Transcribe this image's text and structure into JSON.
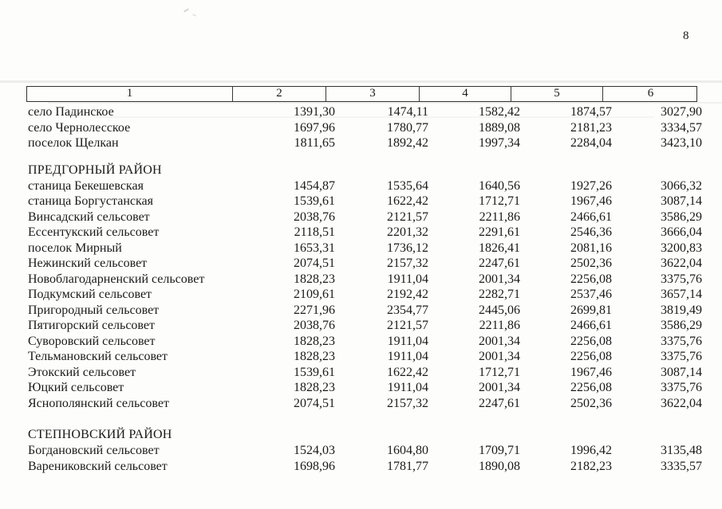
{
  "page": {
    "number": "8"
  },
  "colors": {
    "ink": "#1a1a1a",
    "paper": "#fdfdfc",
    "table_border": "#333231"
  },
  "table": {
    "header_columns": [
      "1",
      "2",
      "3",
      "4",
      "5",
      "6"
    ],
    "sections": [
      {
        "heading": null,
        "rows": [
          {
            "name": "село Падинское",
            "values": [
              "1391,30",
              "1474,11",
              "1582,42",
              "1874,57",
              "3027,90"
            ]
          },
          {
            "name": "село Чернолесское",
            "values": [
              "1697,96",
              "1780,77",
              "1889,08",
              "2181,23",
              "3334,57"
            ]
          },
          {
            "name": "поселок Щелкан",
            "values": [
              "1811,65",
              "1892,42",
              "1997,34",
              "2284,04",
              "3423,10"
            ]
          }
        ]
      },
      {
        "heading": "ПРЕДГОРНЫЙ РАЙОН",
        "rows": [
          {
            "name": "станица Бекешевская",
            "values": [
              "1454,87",
              "1535,64",
              "1640,56",
              "1927,26",
              "3066,32"
            ]
          },
          {
            "name": "станица Боргустанская",
            "values": [
              "1539,61",
              "1622,42",
              "1712,71",
              "1967,46",
              "3087,14"
            ]
          },
          {
            "name": "Винсадский сельсовет",
            "values": [
              "2038,76",
              "2121,57",
              "2211,86",
              "2466,61",
              "3586,29"
            ]
          },
          {
            "name": "Ессентукский сельсовет",
            "values": [
              "2118,51",
              "2201,32",
              "2291,61",
              "2546,36",
              "3666,04"
            ]
          },
          {
            "name": "поселок Мирный",
            "values": [
              "1653,31",
              "1736,12",
              "1826,41",
              "2081,16",
              "3200,83"
            ]
          },
          {
            "name": "Нежинский сельсовет",
            "values": [
              "2074,51",
              "2157,32",
              "2247,61",
              "2502,36",
              "3622,04"
            ]
          },
          {
            "name": "Новоблагодарненский сельсовет",
            "values": [
              "1828,23",
              "1911,04",
              "2001,34",
              "2256,08",
              "3375,76"
            ]
          },
          {
            "name": "Подкумский сельсовет",
            "values": [
              "2109,61",
              "2192,42",
              "2282,71",
              "2537,46",
              "3657,14"
            ]
          },
          {
            "name": "Пригородный сельсовет",
            "values": [
              "2271,96",
              "2354,77",
              "2445,06",
              "2699,81",
              "3819,49"
            ]
          },
          {
            "name": "Пятигорский сельсовет",
            "values": [
              "2038,76",
              "2121,57",
              "2211,86",
              "2466,61",
              "3586,29"
            ]
          },
          {
            "name": "Суворовский сельсовет",
            "values": [
              "1828,23",
              "1911,04",
              "2001,34",
              "2256,08",
              "3375,76"
            ]
          },
          {
            "name": "Тельмановский сельсовет",
            "values": [
              "1828,23",
              "1911,04",
              "2001,34",
              "2256,08",
              "3375,76"
            ]
          },
          {
            "name": "Этокский сельсовет",
            "values": [
              "1539,61",
              "1622,42",
              "1712,71",
              "1967,46",
              "3087,14"
            ]
          },
          {
            "name": "Юцкий сельсовет",
            "values": [
              "1828,23",
              "1911,04",
              "2001,34",
              "2256,08",
              "3375,76"
            ]
          },
          {
            "name": "Яснополянский сельсовет",
            "values": [
              "2074,51",
              "2157,32",
              "2247,61",
              "2502,36",
              "3622,04"
            ]
          }
        ]
      },
      {
        "heading": "СТЕПНОВСКИЙ РАЙОН",
        "rows": [
          {
            "name": "Богдановский сельсовет",
            "values": [
              "1524,03",
              "1604,80",
              "1709,71",
              "1996,42",
              "3135,48"
            ]
          },
          {
            "name": "Варениковский сельсовет",
            "values": [
              "1698,96",
              "1781,77",
              "1890,08",
              "2182,23",
              "3335,57"
            ]
          }
        ]
      }
    ]
  }
}
